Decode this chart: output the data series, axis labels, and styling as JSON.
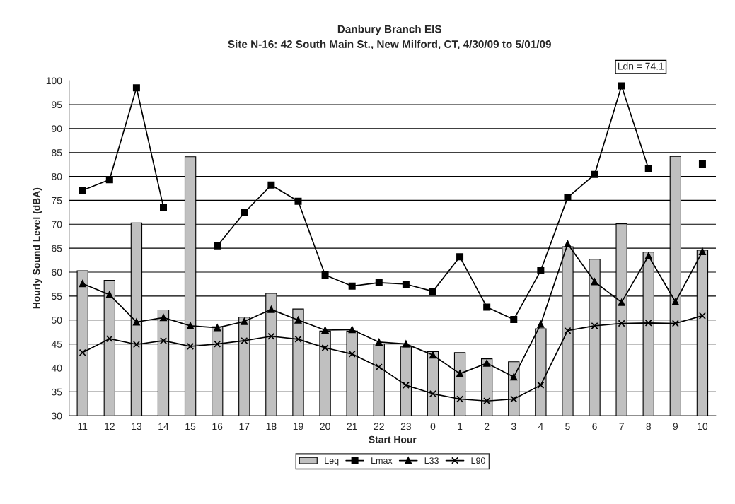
{
  "chart_data": {
    "type": "bar",
    "title": "Danbury Branch EIS",
    "subtitle": "Site N-16: 42 South Main St., New Milford, CT, 4/30/09 to 5/01/09",
    "xlabel": "Start Hour",
    "ylabel": "Hourly Sound Level (dBA)",
    "categories": [
      "11",
      "12",
      "13",
      "14",
      "15",
      "16",
      "17",
      "18",
      "19",
      "20",
      "21",
      "22",
      "23",
      "0",
      "1",
      "2",
      "3",
      "4",
      "5",
      "6",
      "7",
      "8",
      "9",
      "10"
    ],
    "series": [
      {
        "name": "Leq",
        "color": "#c0c0c0",
        "values": [
          60.3,
          58.3,
          70.3,
          52.1,
          84.1,
          48.6,
          50.6,
          55.6,
          52.3,
          47.7,
          47.7,
          45.0,
          44.4,
          43.4,
          43.2,
          41.9,
          41.3,
          48.2,
          65.3,
          62.7,
          70.1,
          64.2,
          84.2,
          64.6
        ]
      },
      {
        "name": "Lmax",
        "type": "line",
        "color": "#000000",
        "marker": "square",
        "values": [
          77.1,
          79.3,
          98.5,
          73.6,
          null,
          65.5,
          72.4,
          78.2,
          74.8,
          59.4,
          57.1,
          57.8,
          57.5,
          56.0,
          63.2,
          52.7,
          50.1,
          60.3,
          75.6,
          80.4,
          98.9,
          81.6,
          null,
          82.6
        ]
      },
      {
        "name": "L33",
        "type": "line",
        "color": "#000000",
        "marker": "triangle",
        "values": [
          57.6,
          55.3,
          49.6,
          50.5,
          48.8,
          48.4,
          49.7,
          52.2,
          50.0,
          47.9,
          48.0,
          45.4,
          45.0,
          42.7,
          38.8,
          41.0,
          38.1,
          49.1,
          65.9,
          58.0,
          53.7,
          63.4,
          53.8,
          64.3
        ]
      },
      {
        "name": "L90",
        "type": "line",
        "color": "#000000",
        "marker": "cross",
        "values": [
          43.2,
          46.1,
          44.9,
          45.7,
          44.5,
          45.0,
          45.7,
          46.6,
          46.0,
          44.2,
          42.9,
          40.2,
          36.4,
          34.6,
          33.5,
          33.1,
          33.5,
          36.4,
          47.8,
          48.8,
          49.3,
          49.4,
          49.3,
          50.9
        ]
      }
    ],
    "ylim": [
      30,
      100
    ],
    "yticks": [
      30,
      35,
      40,
      45,
      50,
      55,
      60,
      65,
      70,
      75,
      80,
      85,
      90,
      95,
      100
    ],
    "grid": "y",
    "legend": "bottom",
    "line_style": "solid",
    "annotations": [
      "Ldn = 74.1"
    ]
  }
}
